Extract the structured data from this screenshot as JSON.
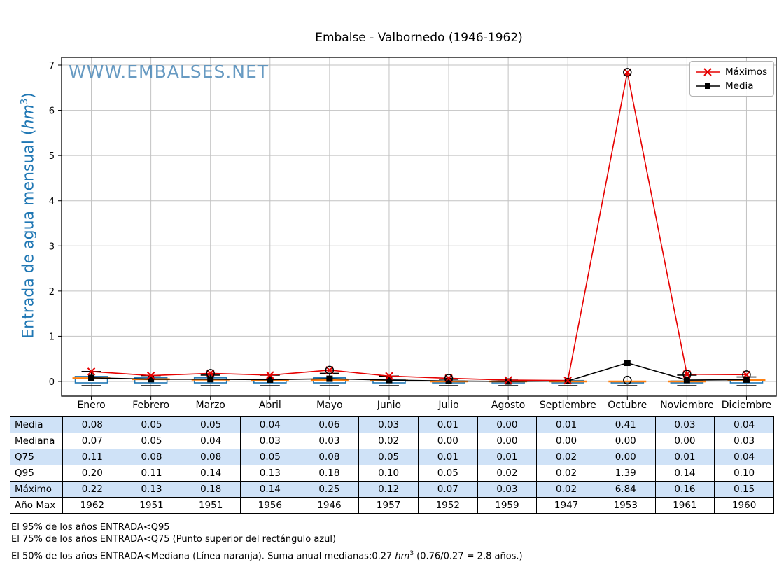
{
  "title": "Embalse - Valbornedo (1946-1962)",
  "watermark": "WWW.EMBALSES.NET",
  "ylabel": {
    "prefix": "Entrada de agua mensual (",
    "unit": "hm",
    "sup": "3",
    "close": ")"
  },
  "legend": {
    "items": [
      {
        "label": "Máximos"
      },
      {
        "label": "Media"
      }
    ]
  },
  "chart_data": {
    "type": "line+boxplot",
    "title": "Embalse - Valbornedo (1946-1962)",
    "ylabel": "Entrada de agua mensual (hm3)",
    "categories": [
      "Enero",
      "Febrero",
      "Marzo",
      "Abril",
      "Mayo",
      "Junio",
      "Julio",
      "Agosto",
      "Septiembre",
      "Octubre",
      "Noviembre",
      "Diciembre"
    ],
    "series": [
      {
        "name": "Máximos",
        "marker": "x",
        "color": "#e60000",
        "values": [
          0.22,
          0.13,
          0.18,
          0.14,
          0.25,
          0.12,
          0.07,
          0.03,
          0.02,
          6.84,
          0.16,
          0.15
        ]
      },
      {
        "name": "Media",
        "marker": "square",
        "color": "#000000",
        "values": [
          0.08,
          0.05,
          0.05,
          0.04,
          0.06,
          0.03,
          0.01,
          0.0,
          0.01,
          0.41,
          0.03,
          0.04
        ]
      }
    ],
    "boxplot": {
      "median": [
        0.07,
        0.05,
        0.04,
        0.03,
        0.03,
        0.02,
        0.0,
        0.0,
        0.0,
        0.0,
        0.0,
        0.03
      ],
      "q75": [
        0.11,
        0.08,
        0.08,
        0.05,
        0.08,
        0.05,
        0.01,
        0.01,
        0.02,
        0.0,
        0.01,
        0.04
      ],
      "q95": [
        0.2,
        0.11,
        0.14,
        0.13,
        0.18,
        0.1,
        0.05,
        0.02,
        0.02,
        1.39,
        0.14,
        0.1
      ],
      "whisker_top": [
        0.22,
        0.13,
        0.14,
        0.14,
        0.18,
        0.12,
        0.05,
        0.03,
        0.02,
        0.0,
        0.14,
        0.1
      ],
      "outlier_at_max": [
        false,
        false,
        true,
        false,
        true,
        false,
        true,
        false,
        false,
        true,
        true,
        true
      ],
      "extra_outliers": [
        {
          "month_index": 9,
          "value": 0.03
        }
      ],
      "box_color": "#1f77b4",
      "median_color": "#ff7f0e"
    },
    "ylim": [
      -0.32,
      7.16
    ],
    "yticks": [
      0,
      1,
      2,
      3,
      4,
      5,
      6,
      7
    ],
    "grid": true,
    "legend_position": "upper right"
  },
  "table": {
    "band_color": "#cfe2f7",
    "rows": [
      {
        "label": "Media",
        "band": true,
        "values": [
          "0.08",
          "0.05",
          "0.05",
          "0.04",
          "0.06",
          "0.03",
          "0.01",
          "0.00",
          "0.01",
          "0.41",
          "0.03",
          "0.04"
        ]
      },
      {
        "label": "Mediana",
        "band": false,
        "values": [
          "0.07",
          "0.05",
          "0.04",
          "0.03",
          "0.03",
          "0.02",
          "0.00",
          "0.00",
          "0.00",
          "0.00",
          "0.00",
          "0.03"
        ]
      },
      {
        "label": "Q75",
        "band": true,
        "values": [
          "0.11",
          "0.08",
          "0.08",
          "0.05",
          "0.08",
          "0.05",
          "0.01",
          "0.01",
          "0.02",
          "0.00",
          "0.01",
          "0.04"
        ]
      },
      {
        "label": "Q95",
        "band": false,
        "values": [
          "0.20",
          "0.11",
          "0.14",
          "0.13",
          "0.18",
          "0.10",
          "0.05",
          "0.02",
          "0.02",
          "1.39",
          "0.14",
          "0.10"
        ]
      },
      {
        "label": "Máximo",
        "band": true,
        "values": [
          "0.22",
          "0.13",
          "0.18",
          "0.14",
          "0.25",
          "0.12",
          "0.07",
          "0.03",
          "0.02",
          "6.84",
          "0.16",
          "0.15"
        ]
      },
      {
        "label": "Año Max",
        "band": false,
        "values": [
          "1962",
          "1951",
          "1951",
          "1956",
          "1946",
          "1957",
          "1952",
          "1959",
          "1947",
          "1953",
          "1961",
          "1960"
        ]
      }
    ]
  },
  "footnotes": {
    "line1": "El 95% de los años ENTRADA<Q95",
    "line2": "El 75% de los años ENTRADA<Q75 (Punto superior del rectángulo azul)",
    "line3_pre": "El 50% de los años ENTRADA<Mediana (Línea naranja). Suma anual medianas:0.27 ",
    "line3_unit": "hm",
    "line3_sup": "3",
    "line3_post": " (0.76/0.27 = 2.8 años.)"
  }
}
